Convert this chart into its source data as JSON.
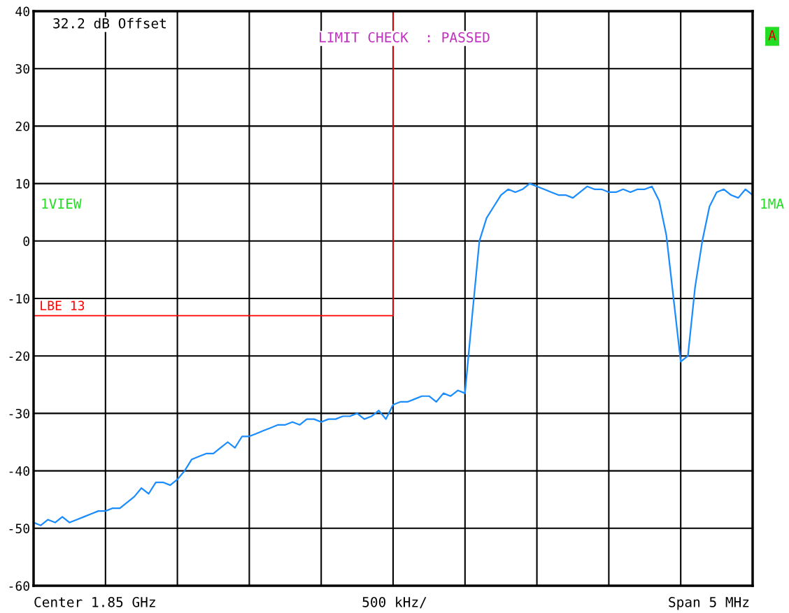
{
  "chart_data": {
    "type": "line",
    "categories": [
      null,
      null,
      null,
      null,
      null,
      null,
      null,
      null,
      null,
      null,
      null,
      null,
      null,
      null,
      null,
      null,
      null,
      null,
      null,
      null,
      null,
      null,
      null,
      null,
      null,
      null,
      null,
      null,
      null,
      null,
      null,
      null,
      null,
      null,
      null,
      null,
      null,
      null,
      null,
      null,
      null,
      null,
      null,
      null,
      null,
      null,
      null,
      null,
      null,
      null,
      null,
      null,
      null,
      null,
      null,
      null,
      null,
      null,
      null,
      null,
      null,
      null,
      null,
      null,
      null,
      null,
      null,
      null,
      null,
      null,
      null,
      null,
      null,
      null,
      null,
      null,
      null,
      null,
      null,
      null,
      null,
      null,
      null,
      null,
      null,
      null,
      null,
      null,
      null,
      null,
      null,
      null,
      null,
      null,
      null,
      null,
      null,
      null,
      null,
      null,
      null
    ],
    "series": [
      {
        "color": "#1a8cff",
        "values": [
          -49,
          -49.5,
          -48.5,
          -49,
          -48,
          -49,
          -48.5,
          -48,
          -47.5,
          -47,
          -47,
          -46.5,
          -46.5,
          -45.5,
          -44.5,
          -43,
          -44,
          -42,
          -42,
          -42.5,
          -41.5,
          -40,
          -38,
          -37.5,
          -37,
          -37,
          -36,
          -35,
          -36,
          -34,
          -34,
          -33.5,
          -33,
          -32.5,
          -32,
          -32,
          -31.5,
          -32,
          -31,
          -31,
          -31.5,
          -31,
          -31,
          -30.5,
          -30.5,
          -30,
          -31,
          -30.5,
          -29.5,
          -31,
          -28.5,
          -28,
          -28,
          -27.5,
          -27,
          -27,
          -28,
          -26.5,
          -27,
          -26,
          -26.5,
          -13,
          0,
          4,
          6,
          8,
          9,
          8.5,
          9,
          10,
          9.5,
          9,
          8.5,
          8,
          8,
          7.5,
          8.5,
          9.5,
          9,
          9,
          8.5,
          8.5,
          9,
          8.5,
          9,
          9,
          9.5,
          7,
          1,
          -10,
          -21,
          -20,
          -8,
          0,
          6,
          8.5,
          9,
          8,
          7.5,
          9,
          8
        ]
      },
      {
        "name": "LBE 13",
        "type": "step",
        "color": "#ff0000",
        "values": [
          -13,
          -13,
          -13,
          -13,
          -13,
          -13,
          -13,
          -13,
          -13,
          -13,
          -13,
          -13,
          -13,
          -13,
          -13,
          -13,
          -13,
          -13,
          -13,
          -13,
          -13,
          -13,
          -13,
          -13,
          -13,
          -13,
          -13,
          -13,
          -13,
          -13,
          -13,
          -13,
          -13,
          -13,
          -13,
          -13,
          -13,
          -13,
          -13,
          -13,
          -13,
          -13,
          -13,
          -13,
          -13,
          -13,
          -13,
          -13,
          -13,
          -13,
          40,
          null,
          null,
          null,
          null,
          null,
          null,
          null,
          null,
          null,
          null,
          null,
          null,
          null,
          null,
          null,
          null,
          null,
          null,
          null,
          null,
          null,
          null,
          null,
          null,
          null,
          null,
          null,
          null,
          null,
          null,
          null,
          null,
          null,
          null,
          null,
          null,
          null,
          null,
          null,
          null,
          null,
          null,
          null,
          null,
          null,
          null,
          null,
          null,
          null,
          null
        ]
      }
    ],
    "ylim": [
      -60,
      40
    ],
    "yticks": [
      -60,
      -50,
      -40,
      -30,
      -20,
      -10,
      0,
      10,
      20,
      30,
      40
    ],
    "grid": true,
    "tick_labels": "y",
    "annotations": [
      "32.2 dB Offset",
      "LIMIT CHECK  : PASSED",
      "A",
      "1VIEW",
      "1MA",
      "Center 1.85 GHz",
      "500 kHz/",
      "Span 5 MHz"
    ]
  }
}
